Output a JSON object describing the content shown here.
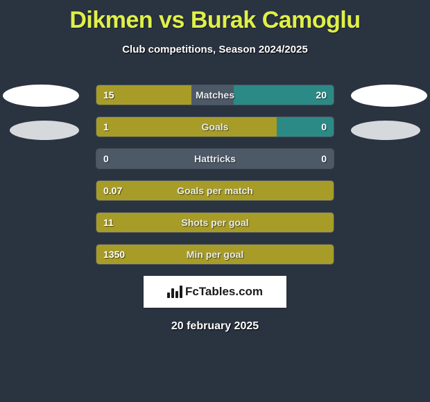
{
  "title": "Dikmen vs Burak Camoglu",
  "subtitle": "Club competitions, Season 2024/2025",
  "date": "20 february 2025",
  "logo_text": "FcTables.com",
  "colors": {
    "olive": "#a79c27",
    "teal": "#2b8a86",
    "slate": "#4d5966",
    "bg": "#2a3340",
    "accent": "#e0f047"
  },
  "rows": [
    {
      "label": "Matches",
      "left_val": "15",
      "right_val": "20",
      "segments": [
        {
          "color": "olive",
          "pct": 40
        },
        {
          "color": "slate",
          "pct": 18
        },
        {
          "color": "teal",
          "pct": 42
        }
      ]
    },
    {
      "label": "Goals",
      "left_val": "1",
      "right_val": "0",
      "segments": [
        {
          "color": "olive",
          "pct": 76
        },
        {
          "color": "teal",
          "pct": 24
        }
      ]
    },
    {
      "label": "Hattricks",
      "left_val": "0",
      "right_val": "0",
      "segments": [
        {
          "color": "slate",
          "pct": 100
        }
      ]
    },
    {
      "label": "Goals per match",
      "left_val": "0.07",
      "right_val": "",
      "segments": [
        {
          "color": "olive",
          "pct": 100
        }
      ]
    },
    {
      "label": "Shots per goal",
      "left_val": "11",
      "right_val": "",
      "segments": [
        {
          "color": "olive",
          "pct": 100
        }
      ]
    },
    {
      "label": "Min per goal",
      "left_val": "1350",
      "right_val": "",
      "segments": [
        {
          "color": "olive",
          "pct": 100
        }
      ]
    }
  ]
}
